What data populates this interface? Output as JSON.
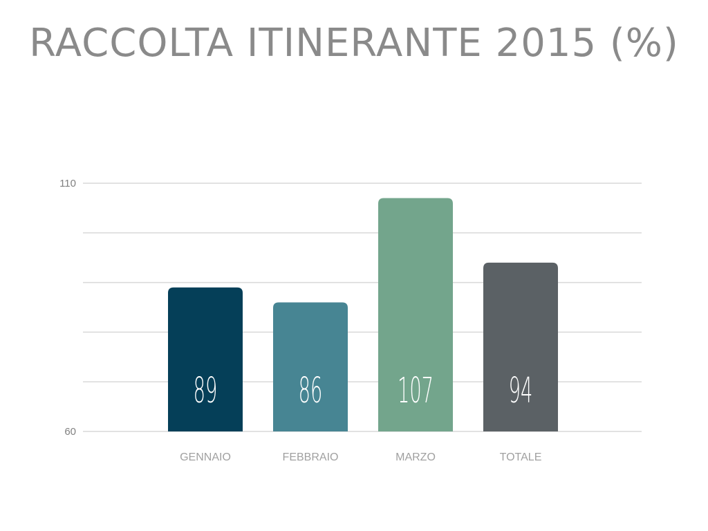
{
  "chart_data": {
    "type": "bar",
    "title": "RACCOLTA ITINERANTE 2015 (%)",
    "categories": [
      "GENNAIO",
      "FEBBRAIO",
      "MARZO",
      "TOTALE"
    ],
    "values": [
      89,
      86,
      107,
      94
    ],
    "value_labels": [
      "89",
      "86",
      "107",
      "94"
    ],
    "colors": [
      "#053f58",
      "#478593",
      "#73a58c",
      "#5b6165"
    ],
    "ylim": [
      60,
      110
    ],
    "yticks": [
      60,
      70,
      80,
      90,
      100,
      110
    ],
    "ytick_labels": [
      "60",
      "110"
    ],
    "grid": true,
    "grid_color": "#d9d9d9"
  }
}
